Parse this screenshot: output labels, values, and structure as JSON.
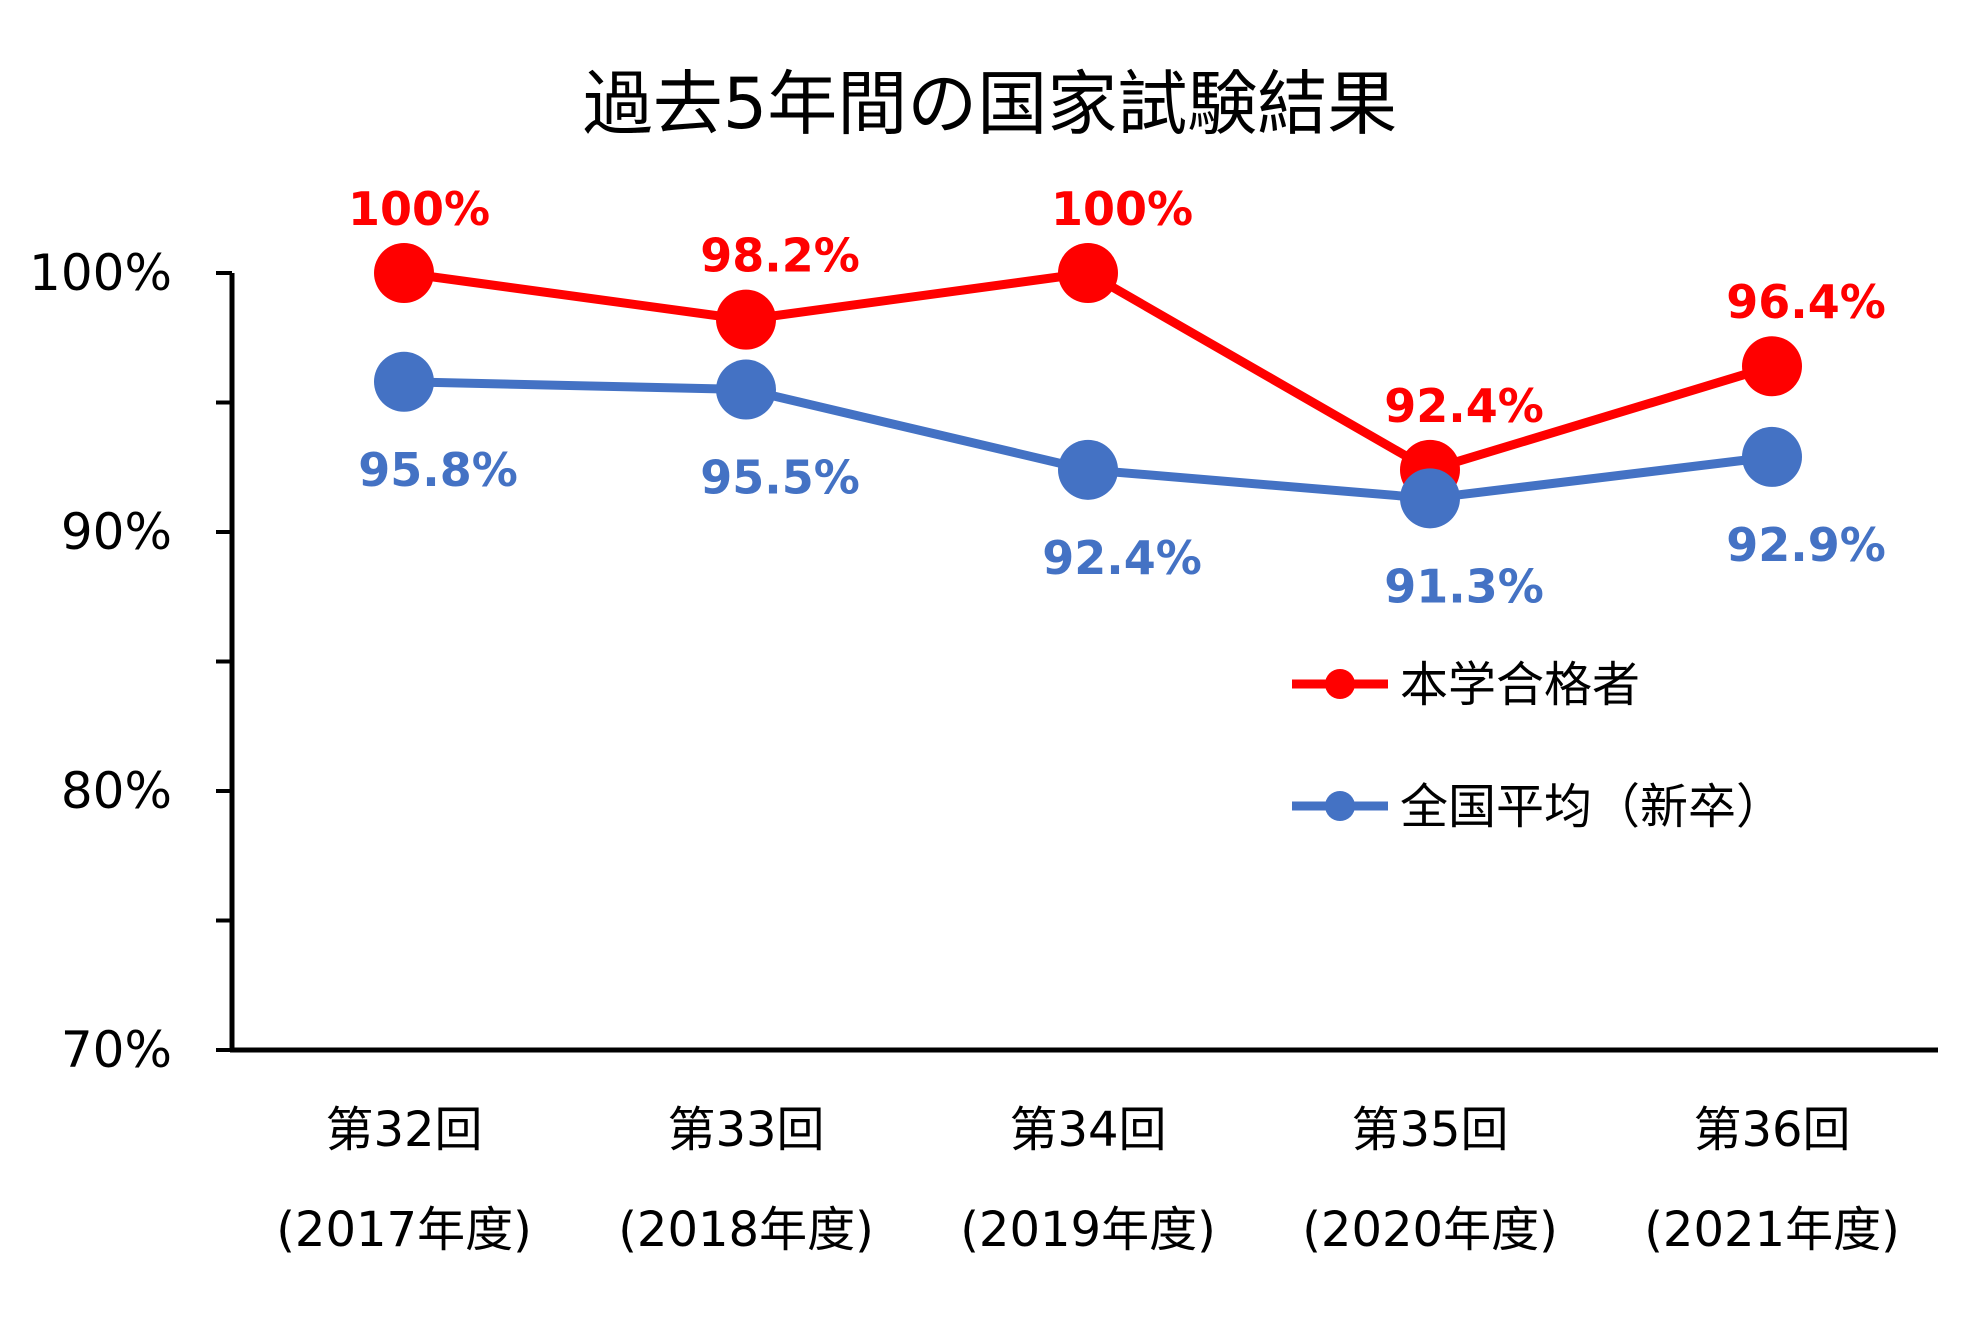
{
  "chart_data": {
    "type": "line",
    "title": "過去5年間の国家試験結果",
    "xlabel": "",
    "ylabel": "",
    "categories": [
      [
        "第32回",
        "(2017年度)"
      ],
      [
        "第33回",
        "(2018年度)"
      ],
      [
        "第34回",
        "(2019年度)"
      ],
      [
        "第35回",
        "(2020年度)"
      ],
      [
        "第36回",
        "(2021年度)"
      ]
    ],
    "ylim": [
      70,
      100
    ],
    "yticks": [
      70,
      80,
      90,
      100
    ],
    "ytick_labels": [
      "70%",
      "80%",
      "90%",
      "100%"
    ],
    "minor_tick_step": 5,
    "grid": false,
    "legend_position": "center-right",
    "series": [
      {
        "name": "本学合格者",
        "color": "#ff0000",
        "values": [
          100,
          98.2,
          100,
          92.4,
          96.4
        ],
        "labels": [
          "100%",
          "98.2%",
          "100%",
          "92.4%",
          "96.4%"
        ],
        "label_position": "above"
      },
      {
        "name": "全国平均（新卒）",
        "color": "#4472c4",
        "values": [
          95.8,
          95.5,
          92.4,
          91.3,
          92.9
        ],
        "labels": [
          "95.8%",
          "95.5%",
          "92.4%",
          "91.3%",
          "92.9%"
        ],
        "label_position": "below"
      }
    ]
  }
}
